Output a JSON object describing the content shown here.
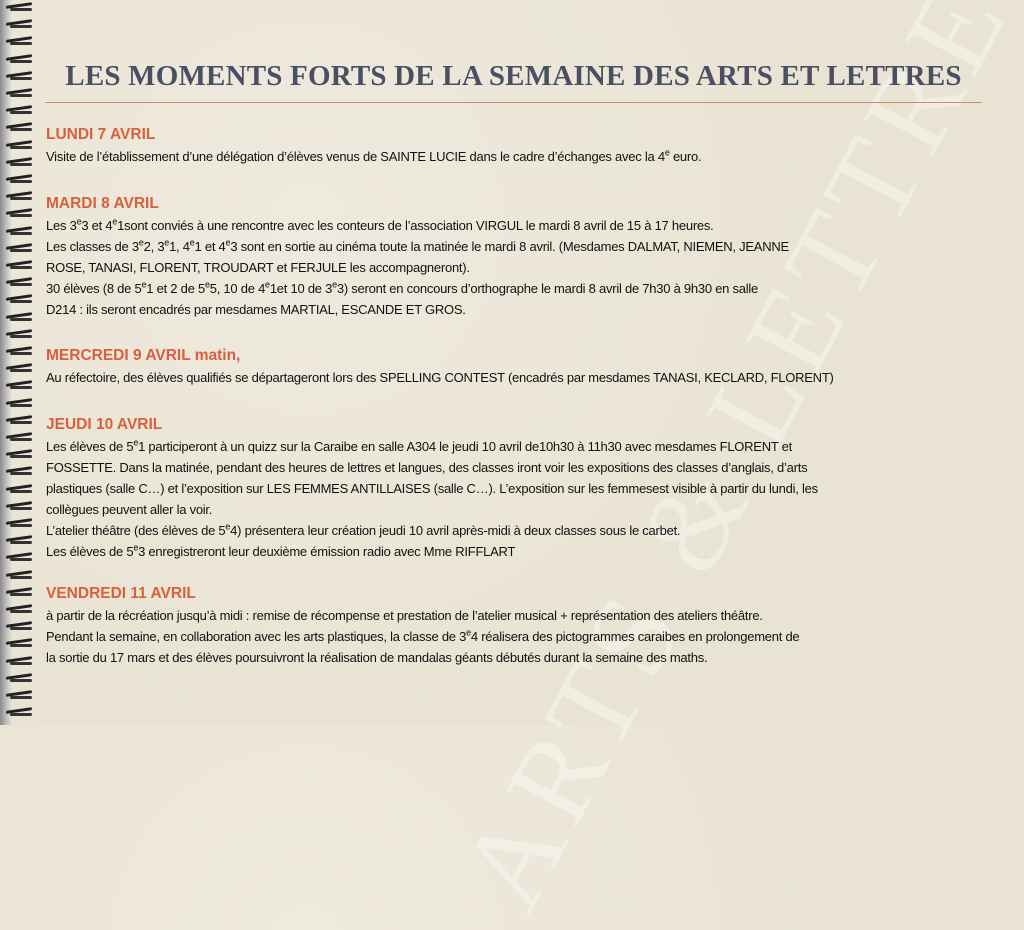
{
  "title": "LES MOMENTS FORTS DE LA SEMAINE DES ARTS ET LETTRES",
  "watermark": "ARTS & LETTRES",
  "colors": {
    "title": "#4a4f63",
    "day_heading": "#d8603c",
    "rule": "#d6896a",
    "background": "#e9e3d3"
  },
  "sections": [
    {
      "day": "LUNDI 7 AVRIL",
      "lines": [
        [
          {
            "t": "Visite de l’établissement d’une délégation d’élèves venus de SAINTE LUCIE  dans le cadre d’échanges avec la 4"
          },
          {
            "sup": "e"
          },
          {
            "t": " euro."
          }
        ]
      ]
    },
    {
      "day": "MARDI 8 AVRIL",
      "lines": [
        [
          {
            "t": "Les 3"
          },
          {
            "sup": "e"
          },
          {
            "t": "3 et 4"
          },
          {
            "sup": "e"
          },
          {
            "t": "1sont conviés à une rencontre avec les conteurs de l’association VIRGUL le mardi 8 avril de 15 à 17 heures."
          }
        ],
        [
          {
            "t": "Les classes de 3"
          },
          {
            "sup": "e"
          },
          {
            "t": "2, 3"
          },
          {
            "sup": "e"
          },
          {
            "t": "1, 4"
          },
          {
            "sup": "e"
          },
          {
            "t": "1 et 4"
          },
          {
            "sup": "e"
          },
          {
            "t": "3 sont en sortie au cinéma toute la matinée le mardi 8 avril. (Mesdames DALMAT, NIEMEN, JEANNE"
          }
        ],
        [
          {
            "t": "ROSE, TANASI, FLORENT, TROUDART et FERJULE les accompagneront)."
          }
        ],
        [
          {
            "t": "30 élèves (8 de 5"
          },
          {
            "sup": "e"
          },
          {
            "t": "1  et  2 de 5"
          },
          {
            "sup": "e"
          },
          {
            "t": "5, 10 de 4"
          },
          {
            "sup": "e"
          },
          {
            "t": "1et 10 de 3"
          },
          {
            "sup": "e"
          },
          {
            "t": "3) seront en concours d’orthographe le mardi 8 avril de 7h30 à 9h30 en salle"
          }
        ],
        [
          {
            "t": "D214 : ils seront encadrés par mesdames MARTIAL, ESCANDE ET GROS."
          }
        ]
      ]
    },
    {
      "day": "MERCREDI  9 AVRIL matin,",
      "lines": [
        [
          {
            "t": "Au réfectoire, des élèves qualifiés se départageront lors des SPELLING CONTEST (encadrés par mesdames TANASI, KECLARD, FLORENT)"
          }
        ]
      ]
    },
    {
      "day": "JEUDI 10 AVRIL",
      "lines": [
        [
          {
            "t": "Les élèves de 5"
          },
          {
            "sup": "e"
          },
          {
            "t": "1 participeront à un quizz sur la Caraibe en salle A304 le jeudi 10 avril de10h30 à 11h30 avec mesdames FLORENT et"
          }
        ],
        [
          {
            "t": "FOSSETTE. Dans la matinée, pendant des heures de lettres et langues, des classes iront voir les expositions des classes d’anglais, d’arts"
          }
        ],
        [
          {
            "t": "plastiques (salle C…) et l’exposition sur LES FEMMES ANTILLAISES (salle C…). L’exposition sur les femmesest visible à partir du lundi, les"
          }
        ],
        [
          {
            "t": "collègues peuvent aller la voir."
          }
        ],
        [
          {
            "t": "L’atelier théâtre (des élèves de 5"
          },
          {
            "sup": "e"
          },
          {
            "t": "4) présentera leur création jeudi 10 avril après-midi à deux classes sous le carbet."
          }
        ],
        [
          {
            "t": "Les élèves de 5"
          },
          {
            "sup": "e"
          },
          {
            "t": "3 enregistreront leur deuxième émission radio avec Mme RIFFLART"
          }
        ]
      ]
    },
    {
      "day": "VENDREDI 11 AVRIL",
      "lines": [
        [
          {
            "t": "à partir de la récréation jusqu’à midi : remise de récompense et prestation de l’atelier musical + représentation des ateliers théâtre."
          }
        ],
        [
          {
            "t": "Pendant la semaine, en collaboration avec les arts plastiques, la classe de 3"
          },
          {
            "sup": "e"
          },
          {
            "t": "4 réalisera des pictogrammes caraibes en prolongement de"
          }
        ],
        [
          {
            "t": "la sortie du 17 mars et  des élèves poursuivront la réalisation de mandalas géants  débutés durant la semaine des maths."
          }
        ]
      ]
    }
  ]
}
